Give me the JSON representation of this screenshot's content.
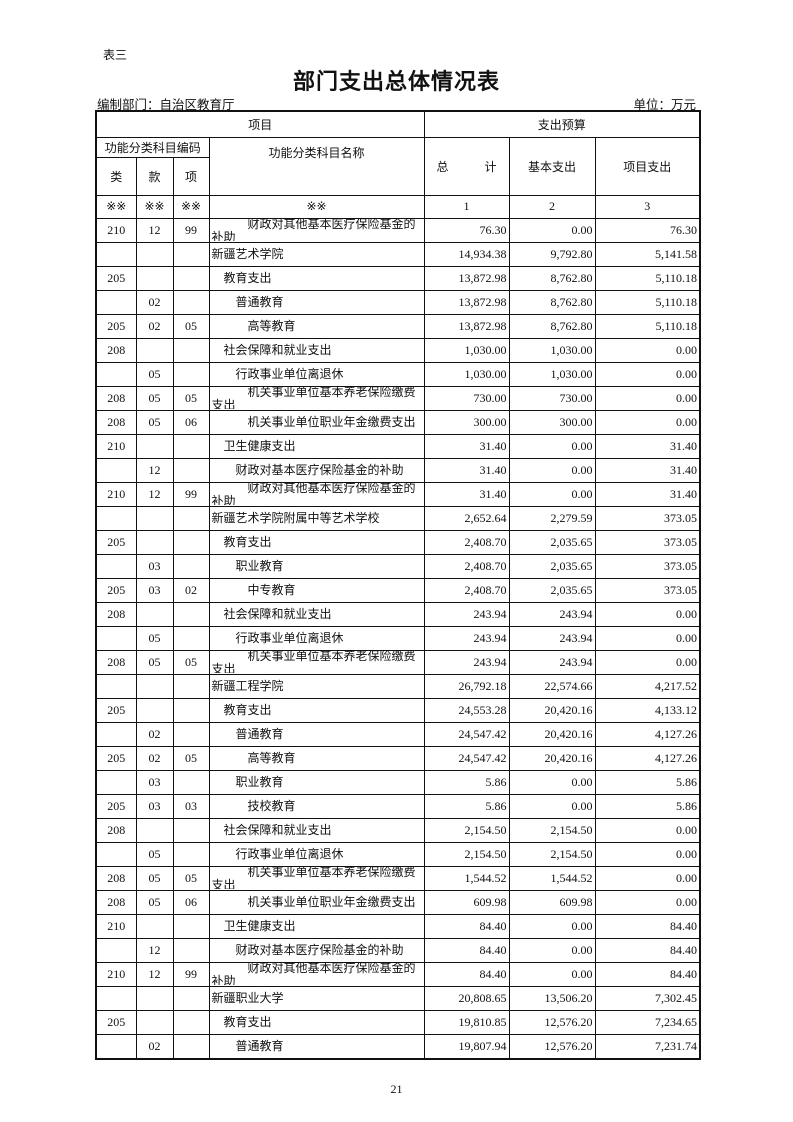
{
  "doc": {
    "tag": "表三",
    "title": "部门支出总体情况表",
    "dept": "编制部门：自治区教育厅",
    "unit": "单位：万元",
    "page_number": "21"
  },
  "header": {
    "item": "项目",
    "budget": "支出预算",
    "code_group": "功能分类科目编码",
    "lei": "类",
    "kuan": "款",
    "xiang": "项",
    "name": "功能分类科目名称",
    "total": "总　　　计",
    "basic": "基本支出",
    "project": "项目支出",
    "mark": "※※",
    "col1": "1",
    "col2": "2",
    "col3": "3"
  },
  "rows": [
    {
      "lei": "210",
      "kuan": "12",
      "xiang": "99",
      "name": "财政对其他基本医疗保险基金的补助",
      "level": 3,
      "total": "76.30",
      "basic": "0.00",
      "project": "76.30"
    },
    {
      "lei": "",
      "kuan": "",
      "xiang": "",
      "name": "新疆艺术学院",
      "level": 0,
      "total": "14,934.38",
      "basic": "9,792.80",
      "project": "5,141.58"
    },
    {
      "lei": "205",
      "kuan": "",
      "xiang": "",
      "name": "教育支出",
      "level": 1,
      "total": "13,872.98",
      "basic": "8,762.80",
      "project": "5,110.18"
    },
    {
      "lei": "",
      "kuan": "02",
      "xiang": "",
      "name": "普通教育",
      "level": 2,
      "total": "13,872.98",
      "basic": "8,762.80",
      "project": "5,110.18"
    },
    {
      "lei": "205",
      "kuan": "02",
      "xiang": "05",
      "name": "高等教育",
      "level": 3,
      "total": "13,872.98",
      "basic": "8,762.80",
      "project": "5,110.18"
    },
    {
      "lei": "208",
      "kuan": "",
      "xiang": "",
      "name": "社会保障和就业支出",
      "level": 1,
      "total": "1,030.00",
      "basic": "1,030.00",
      "project": "0.00"
    },
    {
      "lei": "",
      "kuan": "05",
      "xiang": "",
      "name": "行政事业单位离退休",
      "level": 2,
      "total": "1,030.00",
      "basic": "1,030.00",
      "project": "0.00"
    },
    {
      "lei": "208",
      "kuan": "05",
      "xiang": "05",
      "name": "机关事业单位基本养老保险缴费支出",
      "level": 3,
      "total": "730.00",
      "basic": "730.00",
      "project": "0.00"
    },
    {
      "lei": "208",
      "kuan": "05",
      "xiang": "06",
      "name": "机关事业单位职业年金缴费支出",
      "level": 3,
      "total": "300.00",
      "basic": "300.00",
      "project": "0.00"
    },
    {
      "lei": "210",
      "kuan": "",
      "xiang": "",
      "name": "卫生健康支出",
      "level": 1,
      "total": "31.40",
      "basic": "0.00",
      "project": "31.40"
    },
    {
      "lei": "",
      "kuan": "12",
      "xiang": "",
      "name": "财政对基本医疗保险基金的补助",
      "level": 2,
      "total": "31.40",
      "basic": "0.00",
      "project": "31.40"
    },
    {
      "lei": "210",
      "kuan": "12",
      "xiang": "99",
      "name": "财政对其他基本医疗保险基金的补助",
      "level": 3,
      "total": "31.40",
      "basic": "0.00",
      "project": "31.40"
    },
    {
      "lei": "",
      "kuan": "",
      "xiang": "",
      "name": "新疆艺术学院附属中等艺术学校",
      "level": 0,
      "total": "2,652.64",
      "basic": "2,279.59",
      "project": "373.05"
    },
    {
      "lei": "205",
      "kuan": "",
      "xiang": "",
      "name": "教育支出",
      "level": 1,
      "total": "2,408.70",
      "basic": "2,035.65",
      "project": "373.05"
    },
    {
      "lei": "",
      "kuan": "03",
      "xiang": "",
      "name": "职业教育",
      "level": 2,
      "total": "2,408.70",
      "basic": "2,035.65",
      "project": "373.05"
    },
    {
      "lei": "205",
      "kuan": "03",
      "xiang": "02",
      "name": "中专教育",
      "level": 3,
      "total": "2,408.70",
      "basic": "2,035.65",
      "project": "373.05"
    },
    {
      "lei": "208",
      "kuan": "",
      "xiang": "",
      "name": "社会保障和就业支出",
      "level": 1,
      "total": "243.94",
      "basic": "243.94",
      "project": "0.00"
    },
    {
      "lei": "",
      "kuan": "05",
      "xiang": "",
      "name": "行政事业单位离退休",
      "level": 2,
      "total": "243.94",
      "basic": "243.94",
      "project": "0.00"
    },
    {
      "lei": "208",
      "kuan": "05",
      "xiang": "05",
      "name": "机关事业单位基本养老保险缴费支出",
      "level": 3,
      "total": "243.94",
      "basic": "243.94",
      "project": "0.00"
    },
    {
      "lei": "",
      "kuan": "",
      "xiang": "",
      "name": "新疆工程学院",
      "level": 0,
      "total": "26,792.18",
      "basic": "22,574.66",
      "project": "4,217.52"
    },
    {
      "lei": "205",
      "kuan": "",
      "xiang": "",
      "name": "教育支出",
      "level": 1,
      "total": "24,553.28",
      "basic": "20,420.16",
      "project": "4,133.12"
    },
    {
      "lei": "",
      "kuan": "02",
      "xiang": "",
      "name": "普通教育",
      "level": 2,
      "total": "24,547.42",
      "basic": "20,420.16",
      "project": "4,127.26"
    },
    {
      "lei": "205",
      "kuan": "02",
      "xiang": "05",
      "name": "高等教育",
      "level": 3,
      "total": "24,547.42",
      "basic": "20,420.16",
      "project": "4,127.26"
    },
    {
      "lei": "",
      "kuan": "03",
      "xiang": "",
      "name": "职业教育",
      "level": 2,
      "total": "5.86",
      "basic": "0.00",
      "project": "5.86"
    },
    {
      "lei": "205",
      "kuan": "03",
      "xiang": "03",
      "name": "技校教育",
      "level": 3,
      "total": "5.86",
      "basic": "0.00",
      "project": "5.86"
    },
    {
      "lei": "208",
      "kuan": "",
      "xiang": "",
      "name": "社会保障和就业支出",
      "level": 1,
      "total": "2,154.50",
      "basic": "2,154.50",
      "project": "0.00"
    },
    {
      "lei": "",
      "kuan": "05",
      "xiang": "",
      "name": "行政事业单位离退休",
      "level": 2,
      "total": "2,154.50",
      "basic": "2,154.50",
      "project": "0.00"
    },
    {
      "lei": "208",
      "kuan": "05",
      "xiang": "05",
      "name": "机关事业单位基本养老保险缴费支出",
      "level": 3,
      "total": "1,544.52",
      "basic": "1,544.52",
      "project": "0.00"
    },
    {
      "lei": "208",
      "kuan": "05",
      "xiang": "06",
      "name": "机关事业单位职业年金缴费支出",
      "level": 3,
      "total": "609.98",
      "basic": "609.98",
      "project": "0.00"
    },
    {
      "lei": "210",
      "kuan": "",
      "xiang": "",
      "name": "卫生健康支出",
      "level": 1,
      "total": "84.40",
      "basic": "0.00",
      "project": "84.40"
    },
    {
      "lei": "",
      "kuan": "12",
      "xiang": "",
      "name": "财政对基本医疗保险基金的补助",
      "level": 2,
      "total": "84.40",
      "basic": "0.00",
      "project": "84.40"
    },
    {
      "lei": "210",
      "kuan": "12",
      "xiang": "99",
      "name": "财政对其他基本医疗保险基金的补助",
      "level": 3,
      "total": "84.40",
      "basic": "0.00",
      "project": "84.40"
    },
    {
      "lei": "",
      "kuan": "",
      "xiang": "",
      "name": "新疆职业大学",
      "level": 0,
      "total": "20,808.65",
      "basic": "13,506.20",
      "project": "7,302.45"
    },
    {
      "lei": "205",
      "kuan": "",
      "xiang": "",
      "name": "教育支出",
      "level": 1,
      "total": "19,810.85",
      "basic": "12,576.20",
      "project": "7,234.65"
    },
    {
      "lei": "",
      "kuan": "02",
      "xiang": "",
      "name": "普通教育",
      "level": 2,
      "total": "19,807.94",
      "basic": "12,576.20",
      "project": "7,231.74"
    }
  ]
}
